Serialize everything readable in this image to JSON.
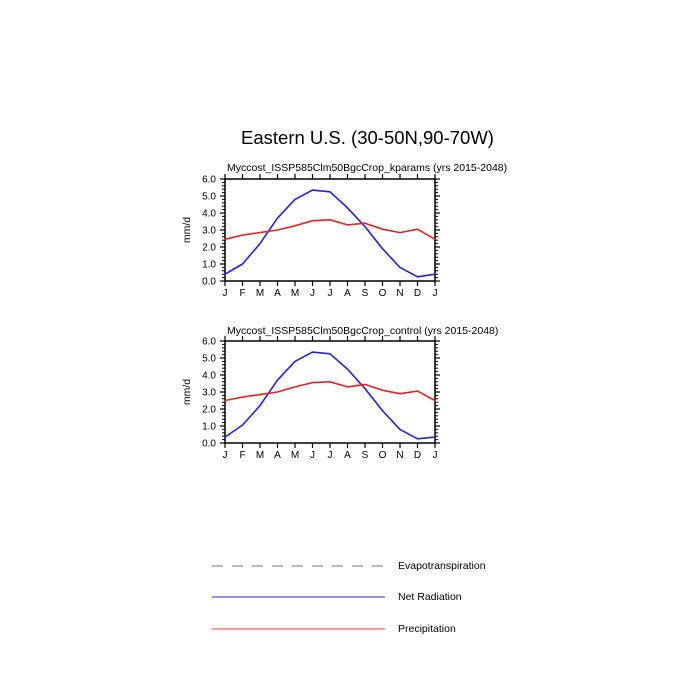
{
  "page_title": "Eastern U.S. (30-50N,90-70W)",
  "chart_data": [
    {
      "type": "line",
      "title": "Myccost_ISSP585Clm50BgcCrop_kparams (yrs 2015-2048)",
      "xlabel": "",
      "ylabel": "mm/d",
      "categories": [
        "J",
        "F",
        "M",
        "A",
        "M",
        "J",
        "J",
        "A",
        "S",
        "O",
        "N",
        "D",
        "J"
      ],
      "ylim": [
        0.0,
        6.0
      ],
      "ytick_step": 1.0,
      "yminor_step": 0.2,
      "ytick_format_decimals": 1,
      "grid": "off",
      "series": [
        {
          "name": "Net Radiation",
          "color": "#2222dd",
          "values": [
            0.4,
            1.0,
            2.2,
            3.7,
            4.8,
            5.35,
            5.25,
            4.3,
            3.2,
            1.9,
            0.8,
            0.25,
            0.4
          ]
        },
        {
          "name": "Precipitation",
          "color": "#e62222",
          "values": [
            2.45,
            2.7,
            2.85,
            3.0,
            3.25,
            3.55,
            3.6,
            3.3,
            3.4,
            3.05,
            2.85,
            3.05,
            2.45
          ]
        }
      ]
    },
    {
      "type": "line",
      "title": "Myccost_ISSP585Clm50BgcCrop_control (yrs 2015-2048)",
      "xlabel": "",
      "ylabel": "mm/d",
      "categories": [
        "J",
        "F",
        "M",
        "A",
        "M",
        "J",
        "J",
        "A",
        "S",
        "O",
        "N",
        "D",
        "J"
      ],
      "ylim": [
        0.0,
        6.0
      ],
      "ytick_step": 1.0,
      "yminor_step": 0.2,
      "ytick_format_decimals": 1,
      "grid": "off",
      "series": [
        {
          "name": "Net Radiation",
          "color": "#2222dd",
          "values": [
            0.35,
            1.05,
            2.2,
            3.7,
            4.8,
            5.35,
            5.25,
            4.35,
            3.2,
            1.9,
            0.8,
            0.25,
            0.35
          ]
        },
        {
          "name": "Precipitation",
          "color": "#e62222",
          "values": [
            2.5,
            2.7,
            2.85,
            3.0,
            3.3,
            3.55,
            3.6,
            3.3,
            3.45,
            3.1,
            2.9,
            3.05,
            2.5
          ]
        }
      ]
    }
  ],
  "legend": {
    "position": "bottom-left",
    "items": [
      {
        "label": "Evapotranspiration",
        "color": "#b9b9b9",
        "style": "dashed"
      },
      {
        "label": "Net Radiation",
        "color": "#9191e8",
        "style": "solid"
      },
      {
        "label": "Precipitation",
        "color": "#f59b9b",
        "style": "solid"
      }
    ]
  }
}
